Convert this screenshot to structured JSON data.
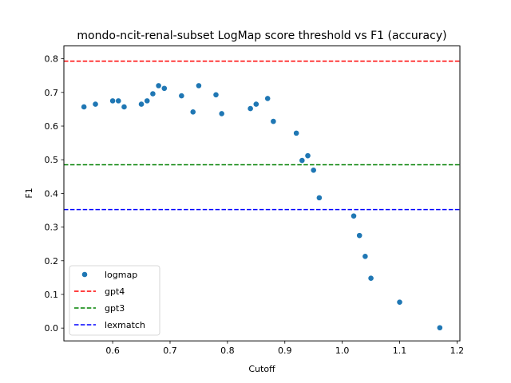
{
  "chart_data": {
    "type": "scatter",
    "title": "mondo-ncit-renal-subset LogMap score threshold vs F1 (accuracy)",
    "xlabel": "Cutoff",
    "ylabel": "F1",
    "xlim": [
      0.515,
      1.205
    ],
    "ylim": [
      -0.038,
      0.838
    ],
    "xticks": [
      0.6,
      0.7,
      0.8,
      0.9,
      1.0,
      1.1,
      1.2
    ],
    "xtick_labels": [
      "0.6",
      "0.7",
      "0.8",
      "0.9",
      "1.0",
      "1.1",
      "1.2"
    ],
    "yticks": [
      0.0,
      0.1,
      0.2,
      0.3,
      0.4,
      0.5,
      0.6,
      0.7,
      0.8
    ],
    "ytick_labels": [
      "0.0",
      "0.1",
      "0.2",
      "0.3",
      "0.4",
      "0.5",
      "0.6",
      "0.7",
      "0.8"
    ],
    "grid": false,
    "legend_position": "lower-left",
    "series": [
      {
        "name": "logmap",
        "kind": "scatter",
        "color": "#1f77b4",
        "x": [
          0.55,
          0.57,
          0.6,
          0.61,
          0.62,
          0.65,
          0.66,
          0.67,
          0.68,
          0.69,
          0.72,
          0.74,
          0.75,
          0.78,
          0.79,
          0.84,
          0.85,
          0.87,
          0.88,
          0.92,
          0.93,
          0.94,
          0.95,
          0.96,
          1.02,
          1.03,
          1.04,
          1.05,
          1.1,
          1.17
        ],
        "y": [
          0.657,
          0.665,
          0.675,
          0.675,
          0.657,
          0.665,
          0.675,
          0.696,
          0.72,
          0.712,
          0.69,
          0.642,
          0.72,
          0.693,
          0.637,
          0.652,
          0.665,
          0.682,
          0.614,
          0.579,
          0.498,
          0.512,
          0.469,
          0.387,
          0.333,
          0.275,
          0.213,
          0.148,
          0.077,
          0.001
        ]
      },
      {
        "name": "gpt4",
        "kind": "hline",
        "color": "#ff0000",
        "value": 0.793
      },
      {
        "name": "gpt3",
        "kind": "hline",
        "color": "#008000",
        "value": 0.485
      },
      {
        "name": "lexmatch",
        "kind": "hline",
        "color": "#0000ff",
        "value": 0.352
      }
    ]
  }
}
